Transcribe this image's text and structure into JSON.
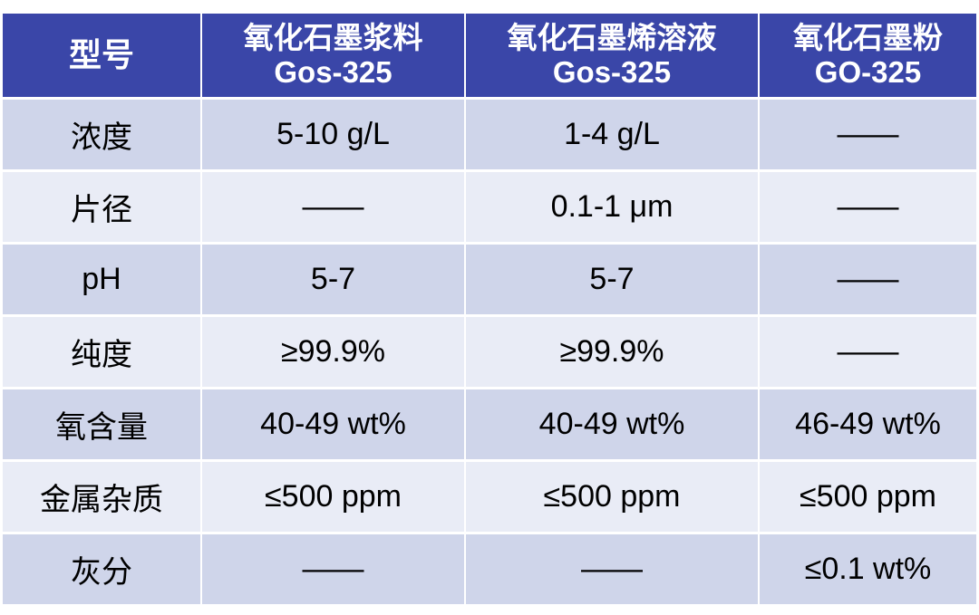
{
  "table": {
    "header": [
      [
        "型号"
      ],
      [
        "氧化石墨浆料",
        "Gos-325"
      ],
      [
        "氧化石墨烯溶液",
        "Gos-325"
      ],
      [
        "氧化石墨粉",
        "GO-325"
      ]
    ],
    "rows": [
      [
        "浓度",
        "5-10 g/L",
        "1-4 g/L",
        "——"
      ],
      [
        "片径",
        "——",
        "0.1-1 μm",
        "——"
      ],
      [
        "pH",
        "5-7",
        "5-7",
        "——"
      ],
      [
        "纯度",
        "≥99.9%",
        "≥99.9%",
        "——"
      ],
      [
        "氧含量",
        "40-49 wt%",
        "40-49 wt%",
        "46-49 wt%"
      ],
      [
        "金属杂质",
        "≤500 ppm",
        "≤500 ppm",
        "≤500 ppm"
      ],
      [
        "灰分",
        "——",
        "——",
        "≤0.1 wt%"
      ]
    ]
  }
}
